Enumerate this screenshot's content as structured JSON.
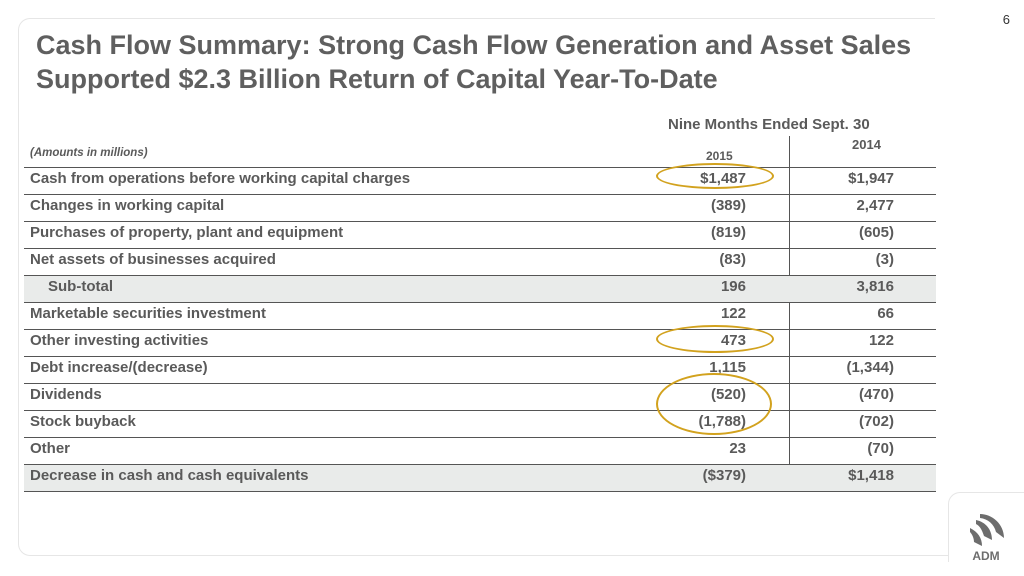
{
  "page_number": "6",
  "title": {
    "line1": "Cash Flow Summary: Strong Cash Flow Generation and Asset Sales",
    "line2": "Supported $2.3 Billion Return of Capital Year-To-Date"
  },
  "table": {
    "amounts_note": "(Amounts in millions)",
    "period_header": "Nine Months Ended Sept. 30",
    "year_current": "2015",
    "year_prior": "2014",
    "rows": [
      {
        "label": "Cash from operations before working capital charges",
        "v2015": "$1,487",
        "v2014": "$1,947"
      },
      {
        "label": "Changes in working capital",
        "v2015": "(389)",
        "v2014": "2,477"
      },
      {
        "label": "Purchases of property, plant and equipment",
        "v2015": "(819)",
        "v2014": "(605)"
      },
      {
        "label": "Net assets of businesses acquired",
        "v2015": "(83)",
        "v2014": "(3)"
      },
      {
        "label": "Sub-total",
        "v2015": "196",
        "v2014": "3,816"
      },
      {
        "label": "Marketable securities investment",
        "v2015": "122",
        "v2014": "66"
      },
      {
        "label": "Other investing activities",
        "v2015": "473",
        "v2014": "122"
      },
      {
        "label": "Debt increase/(decrease)",
        "v2015": "1,115",
        "v2014": "(1,344)"
      },
      {
        "label": "Dividends",
        "v2015": "(520)",
        "v2014": "(470)"
      },
      {
        "label": "Stock buyback",
        "v2015": "(1,788)",
        "v2014": "(702)"
      },
      {
        "label": "Other",
        "v2015": "23",
        "v2014": "(70)"
      },
      {
        "label": "Decrease in cash and cash equivalents",
        "v2015": "($379)",
        "v2014": "$1,418"
      }
    ]
  },
  "highlight_color": "#d2a21e",
  "logo": {
    "text": "ADM",
    "icon": "adm-logo-icon"
  }
}
